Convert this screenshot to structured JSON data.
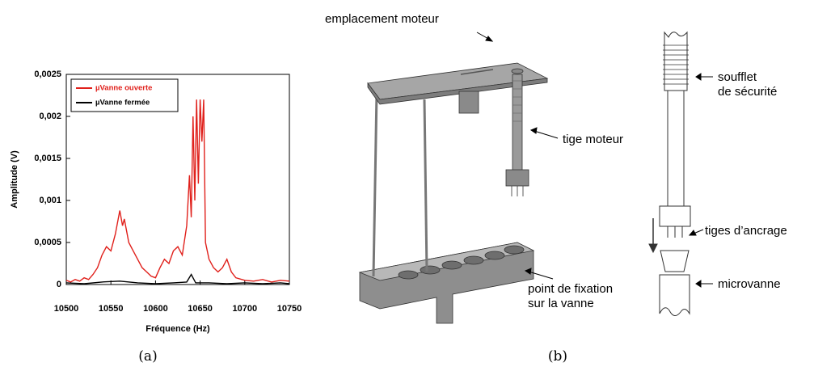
{
  "chart_data": {
    "type": "line",
    "xlabel": "Fréquence (Hz)",
    "ylabel": "Amplitude (V)",
    "xlim": [
      10500,
      10750
    ],
    "xticks": [
      10500,
      10550,
      10600,
      10650,
      10700,
      10750
    ],
    "ylim": [
      0,
      0.0025
    ],
    "yticks": [
      0,
      {
        "value": 0.0005,
        "label": "0,0005"
      },
      {
        "value": 0.001,
        "label": "0,001"
      },
      {
        "value": 0.0015,
        "label": "0,0015"
      },
      {
        "value": 0.002,
        "label": "0,002"
      },
      {
        "value": 0.0025,
        "label": "0,0025"
      }
    ],
    "legend": "upper left",
    "series": [
      {
        "name": "µVanne ouverte",
        "color": "#e0201b",
        "x": [
          10500,
          10505,
          10510,
          10515,
          10520,
          10525,
          10530,
          10535,
          10540,
          10545,
          10550,
          10555,
          10560,
          10563,
          10565,
          10570,
          10575,
          10580,
          10585,
          10590,
          10595,
          10600,
          10605,
          10610,
          10615,
          10620,
          10625,
          10630,
          10635,
          10638,
          10640,
          10642,
          10644,
          10646,
          10648,
          10650,
          10652,
          10654,
          10656,
          10660,
          10665,
          10670,
          10675,
          10680,
          10685,
          10690,
          10700,
          10710,
          10720,
          10730,
          10740,
          10750
        ],
        "values": [
          5e-05,
          3e-05,
          6e-05,
          4e-05,
          8e-05,
          6e-05,
          0.00012,
          0.0002,
          0.00035,
          0.00045,
          0.0004,
          0.0006,
          0.00088,
          0.0007,
          0.00078,
          0.0005,
          0.0004,
          0.0003,
          0.0002,
          0.00015,
          0.0001,
          8e-05,
          0.0002,
          0.0003,
          0.00025,
          0.0004,
          0.00045,
          0.00035,
          0.0007,
          0.0013,
          0.0008,
          0.002,
          0.001,
          0.0022,
          0.0012,
          0.0022,
          0.0017,
          0.0022,
          0.0005,
          0.0003,
          0.0002,
          0.00015,
          0.0002,
          0.0003,
          0.00015,
          8e-05,
          5e-05,
          4e-05,
          6e-05,
          3e-05,
          5e-05,
          4e-05
        ]
      },
      {
        "name": "µVanne fermée",
        "color": "#000000",
        "x": [
          10500,
          10520,
          10540,
          10560,
          10580,
          10600,
          10620,
          10635,
          10640,
          10645,
          10660,
          10680,
          10700,
          10720,
          10740,
          10750
        ],
        "values": [
          2e-05,
          1e-05,
          3e-05,
          4e-05,
          2e-05,
          1e-05,
          2e-05,
          3e-05,
          0.00012,
          2e-05,
          2e-05,
          1e-05,
          2e-05,
          1e-05,
          2e-05,
          1e-05
        ]
      }
    ]
  },
  "captions": [
    "(a)",
    "(b)"
  ],
  "diagram": {
    "labels": {
      "emplacement": [
        "emplacement moteur"
      ],
      "tige": [
        "tige moteur"
      ],
      "fixation": [
        "point de fixation",
        "sur la vanne"
      ],
      "soufflet": [
        "soufflet",
        "de sécurité"
      ],
      "ancrage": [
        "tiges d’ancrage"
      ],
      "microvanne": [
        "microvanne"
      ]
    }
  }
}
